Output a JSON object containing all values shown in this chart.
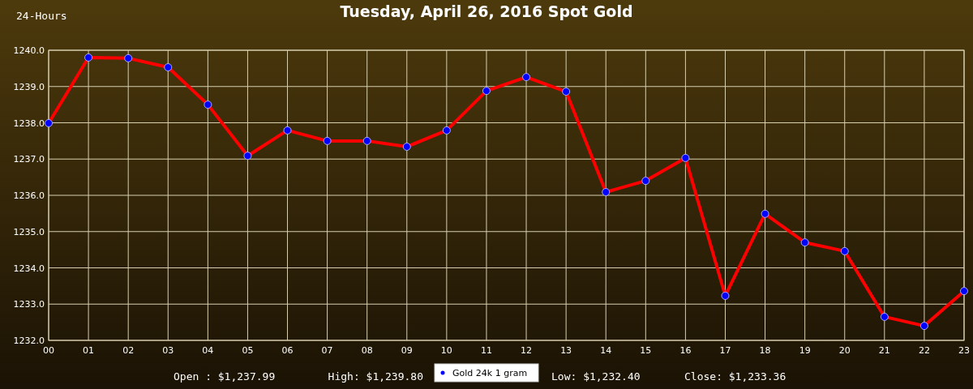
{
  "chart_data": {
    "type": "line",
    "title": "Tuesday, April 26, 2016 Spot Gold",
    "annotations": [
      "24-Hours",
      "Open : $1,237.99",
      "High: $1,239.80",
      "Low: $1,232.40",
      "Close: $1,233.36"
    ],
    "categories": [
      "00",
      "01",
      "02",
      "03",
      "04",
      "05",
      "06",
      "07",
      "08",
      "09",
      "10",
      "11",
      "12",
      "13",
      "14",
      "15",
      "16",
      "17",
      "18",
      "19",
      "20",
      "21",
      "22",
      "23"
    ],
    "series": [
      {
        "name": "Gold 24k 1 gram",
        "color": "#ff0000",
        "values": [
          1237.99,
          1239.8,
          1239.78,
          1239.53,
          1238.5,
          1237.09,
          1237.79,
          1237.5,
          1237.5,
          1237.34,
          1237.79,
          1238.88,
          1239.26,
          1238.86,
          1236.09,
          1236.4,
          1237.03,
          1233.23,
          1235.49,
          1234.7,
          1234.46,
          1232.65,
          1232.4,
          1233.36
        ]
      }
    ],
    "ylim": [
      1232,
      1240
    ],
    "yticks": [
      {
        "value": 1232,
        "label": "1232.0"
      },
      {
        "value": 1233,
        "label": "1233.0"
      },
      {
        "value": 1234,
        "label": "1234.0"
      },
      {
        "value": 1235,
        "label": "1235.0"
      },
      {
        "value": 1236,
        "label": "1236.0"
      },
      {
        "value": 1237,
        "label": "1237.0"
      },
      {
        "value": 1238,
        "label": "1238.0"
      },
      {
        "value": 1239,
        "label": "1239.0"
      },
      {
        "value": 1240,
        "label": "1240.0"
      }
    ],
    "grid": true,
    "legend": "bottom",
    "marker": "circle",
    "line_style": "solid"
  }
}
